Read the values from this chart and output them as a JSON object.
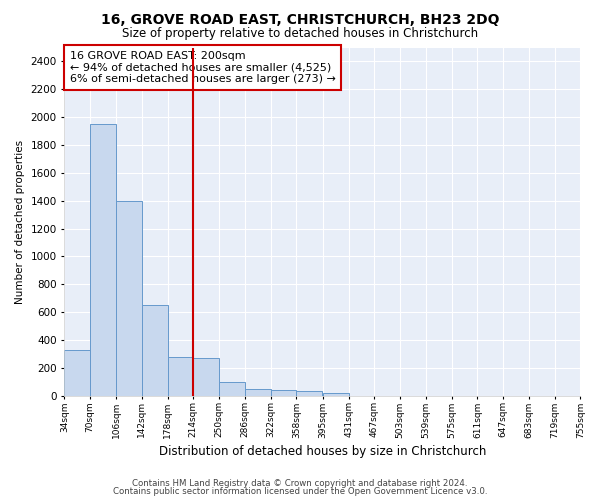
{
  "title": "16, GROVE ROAD EAST, CHRISTCHURCH, BH23 2DQ",
  "subtitle": "Size of property relative to detached houses in Christchurch",
  "xlabel": "Distribution of detached houses by size in Christchurch",
  "ylabel": "Number of detached properties",
  "bar_color": "#c8d8ee",
  "bar_edge_color": "#6699cc",
  "background_color": "#e8eef8",
  "grid_color": "#ffffff",
  "vline_color": "#cc0000",
  "annotation_box_color": "#cc0000",
  "annotation_lines": [
    "16 GROVE ROAD EAST: 200sqm",
    "← 94% of detached houses are smaller (4,525)",
    "6% of semi-detached houses are larger (273) →"
  ],
  "bin_edges": [
    34,
    70,
    106,
    142,
    178,
    214,
    250,
    286,
    322,
    358,
    395,
    431,
    467,
    503,
    539,
    575,
    611,
    647,
    683,
    719,
    755
  ],
  "bar_heights": [
    325,
    1950,
    1400,
    650,
    280,
    270,
    100,
    45,
    38,
    35,
    22,
    0,
    0,
    0,
    0,
    0,
    0,
    0,
    0,
    0
  ],
  "ylim": [
    0,
    2500
  ],
  "yticks": [
    0,
    200,
    400,
    600,
    800,
    1000,
    1200,
    1400,
    1600,
    1800,
    2000,
    2200,
    2400
  ],
  "xtick_labels": [
    "34sqm",
    "70sqm",
    "106sqm",
    "142sqm",
    "178sqm",
    "214sqm",
    "250sqm",
    "286sqm",
    "322sqm",
    "358sqm",
    "395sqm",
    "431sqm",
    "467sqm",
    "503sqm",
    "539sqm",
    "575sqm",
    "611sqm",
    "647sqm",
    "683sqm",
    "719sqm",
    "755sqm"
  ],
  "footnote1": "Contains HM Land Registry data © Crown copyright and database right 2024.",
  "footnote2": "Contains public sector information licensed under the Open Government Licence v3.0."
}
